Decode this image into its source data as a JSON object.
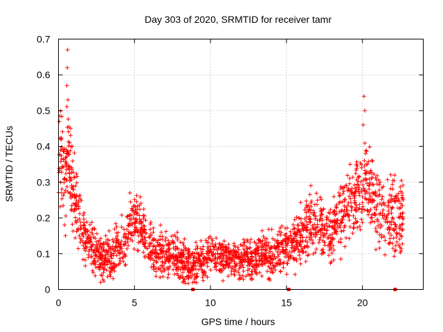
{
  "chart_data": {
    "type": "scatter",
    "title": "Day 303 of 2020, SRMTID for receiver tamr",
    "xlabel": "GPS time / hours",
    "ylabel": "SRMTID / TECUs",
    "xlim": [
      0,
      24
    ],
    "ylim": [
      0,
      0.7
    ],
    "x_ticks": [
      0,
      5,
      10,
      15,
      20
    ],
    "x_tick_labels": [
      "0",
      "5",
      "10",
      "15",
      "20"
    ],
    "y_ticks": [
      0,
      0.1,
      0.2,
      0.3,
      0.4,
      0.5,
      0.6,
      0.7
    ],
    "y_tick_labels": [
      "0",
      "0.1",
      "0.2",
      "0.3",
      "0.4",
      "0.5",
      "0.6",
      "0.7"
    ],
    "grid": true,
    "marker": "plus",
    "marker_color": "#ff0000",
    "series": [
      {
        "name": "SRMTID",
        "trend": {
          "x": [
            0,
            0.1,
            0.2,
            0.4,
            0.6,
            0.8,
            1.0,
            1.3,
            1.6,
            2.0,
            2.5,
            3.0,
            3.5,
            4.0,
            4.5,
            4.8,
            5.2,
            5.5,
            6.0,
            6.5,
            7.0,
            7.5,
            8.0,
            8.5,
            9.0,
            9.5,
            10.0,
            10.5,
            11.0,
            11.5,
            12.0,
            12.5,
            13.0,
            13.5,
            14.0,
            14.5,
            15.0,
            15.5,
            16.0,
            16.5,
            17.0,
            17.5,
            18.0,
            18.5,
            19.0,
            19.5,
            20.0,
            20.2,
            20.5,
            21.0,
            21.5,
            22.0,
            22.5,
            22.7
          ],
          "y": [
            0.33,
            0.42,
            0.36,
            0.31,
            0.36,
            0.34,
            0.26,
            0.2,
            0.16,
            0.13,
            0.1,
            0.09,
            0.1,
            0.12,
            0.13,
            0.2,
            0.19,
            0.17,
            0.12,
            0.1,
            0.1,
            0.09,
            0.08,
            0.07,
            0.07,
            0.08,
            0.1,
            0.09,
            0.09,
            0.08,
            0.08,
            0.09,
            0.09,
            0.1,
            0.1,
            0.11,
            0.12,
            0.13,
            0.15,
            0.17,
            0.18,
            0.18,
            0.16,
            0.2,
            0.24,
            0.25,
            0.27,
            0.33,
            0.27,
            0.23,
            0.21,
            0.2,
            0.19,
            0.2
          ]
        },
        "spread": {
          "x": [
            0,
            0.5,
            1.0,
            2.0,
            5.0,
            7.0,
            12.0,
            15.0,
            16.5,
            19.0,
            20.0,
            21.0,
            22.7
          ],
          "y": [
            0.08,
            0.07,
            0.05,
            0.03,
            0.035,
            0.03,
            0.025,
            0.03,
            0.04,
            0.05,
            0.05,
            0.05,
            0.05
          ]
        },
        "peaks": [
          {
            "x": 0.6,
            "y": 0.67
          },
          {
            "x": 0.58,
            "y": 0.62
          },
          {
            "x": 0.55,
            "y": 0.57
          },
          {
            "x": 0.62,
            "y": 0.53
          },
          {
            "x": 0.05,
            "y": 0.47
          },
          {
            "x": 0.8,
            "y": 0.45
          },
          {
            "x": 0.9,
            "y": 0.4
          },
          {
            "x": 20.1,
            "y": 0.54
          },
          {
            "x": 20.15,
            "y": 0.5
          },
          {
            "x": 20.05,
            "y": 0.46
          },
          {
            "x": 20.2,
            "y": 0.38
          },
          {
            "x": 19.6,
            "y": 0.35
          },
          {
            "x": 4.7,
            "y": 0.27
          },
          {
            "x": 16.6,
            "y": 0.29
          },
          {
            "x": 0.2,
            "y": 0.27
          }
        ],
        "point_count": 2200
      }
    ],
    "gap_markers": [
      {
        "x": 8.85,
        "y": 0
      },
      {
        "x": 15.15,
        "y": 0
      },
      {
        "x": 22.15,
        "y": 0
      }
    ]
  }
}
